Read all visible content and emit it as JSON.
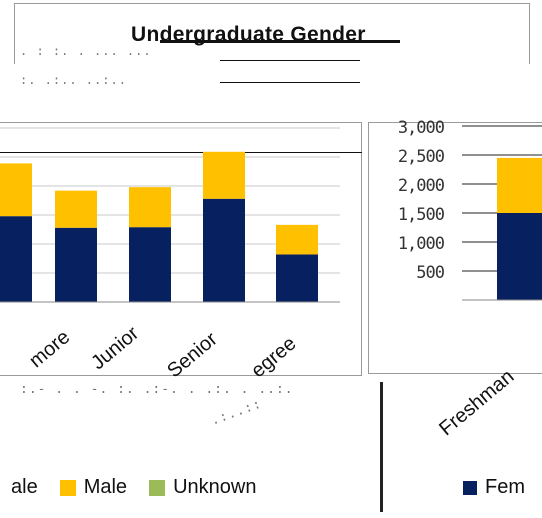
{
  "page": {
    "title": "Undergraduate Gender"
  },
  "legend": {
    "items": [
      {
        "label": "ale",
        "color": "#062060"
      },
      {
        "label": "Male",
        "color": "#FFC000"
      },
      {
        "label": "Unknown",
        "color": "#9BBB59"
      }
    ],
    "right_label": "Fem"
  },
  "chart_data": [
    {
      "type": "bar",
      "title": "",
      "categories": [
        "",
        "more",
        "Junior",
        "Senior",
        "egree"
      ],
      "series": [
        {
          "name": "ale",
          "values": [
            1480,
            1280,
            1290,
            1780,
            820
          ]
        },
        {
          "name": "Male",
          "values": [
            910,
            640,
            690,
            810,
            510
          ]
        }
      ],
      "ylim": [
        0,
        3000
      ],
      "grid": true,
      "stacked": true,
      "colors": [
        "#062060",
        "#FFC000"
      ]
    },
    {
      "type": "bar",
      "title": "",
      "categories": [
        "Freshman"
      ],
      "yticks": [
        "3,000",
        "2,500",
        "2,000",
        "1,500",
        "1,000",
        "500"
      ],
      "series": [
        {
          "name": "Fem",
          "values": [
            1500
          ]
        },
        {
          "name": "",
          "values": [
            950
          ]
        }
      ],
      "ylim": [
        0,
        3000
      ],
      "grid": true,
      "stacked": true,
      "colors": [
        "#062060",
        "#FFC000"
      ]
    }
  ]
}
